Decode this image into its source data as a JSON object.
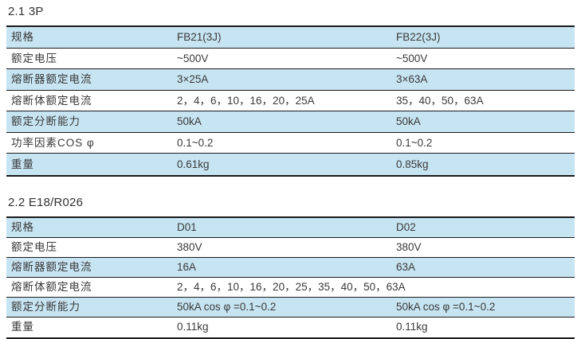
{
  "colors": {
    "row_highlight": "#c7e4f2",
    "border": "#1a1a1a",
    "text": "#3a3a3a"
  },
  "sections": [
    {
      "title": "2.1 3P",
      "rows": [
        {
          "key": "spec",
          "label": "规格",
          "values": [
            "FB21(3J)",
            "FB22(3J)"
          ]
        },
        {
          "key": "rated-voltage",
          "label": "额定电压",
          "values": [
            "~500V",
            "~500V"
          ]
        },
        {
          "key": "fuse-rated-current",
          "label": "熔断器额定电流",
          "values": [
            "3×25A",
            "3×63A"
          ]
        },
        {
          "key": "link-rated-current",
          "label": "熔断体额定电流",
          "values": [
            "2，4，6，10，16，20，25A",
            "35，40，50，63A"
          ]
        },
        {
          "key": "breaking-capacity",
          "label": "额定分断能力",
          "values": [
            "50kA",
            "50kA"
          ]
        },
        {
          "key": "power-factor",
          "label": "功率因素COS φ",
          "values": [
            "0.1~0.2",
            "0.1~0.2"
          ]
        },
        {
          "key": "weight",
          "label": "重量",
          "values": [
            "0.61kg",
            "0.85kg"
          ]
        }
      ]
    },
    {
      "title": "2.2 E18/R026",
      "rows": [
        {
          "key": "spec",
          "label": "规格",
          "values": [
            "D01",
            "D02"
          ]
        },
        {
          "key": "rated-voltage",
          "label": "额定电压",
          "values": [
            "380V",
            "380V"
          ]
        },
        {
          "key": "fuse-rated-current",
          "label": "熔断器额定电流",
          "values": [
            "16A",
            "63A"
          ]
        },
        {
          "key": "link-rated-current",
          "label": "熔断体额定电流",
          "values": [
            "2，4，6，10，16，20，25，35，40，50，63A"
          ],
          "span": true
        },
        {
          "key": "breaking-capacity",
          "label": "额定分断能力",
          "values": [
            "50kA  cos φ =0.1~0.2",
            "50kA  cos φ =0.1~0.2"
          ]
        },
        {
          "key": "weight",
          "label": "重量",
          "values": [
            "0.11kg",
            "0.11kg"
          ]
        }
      ]
    }
  ]
}
